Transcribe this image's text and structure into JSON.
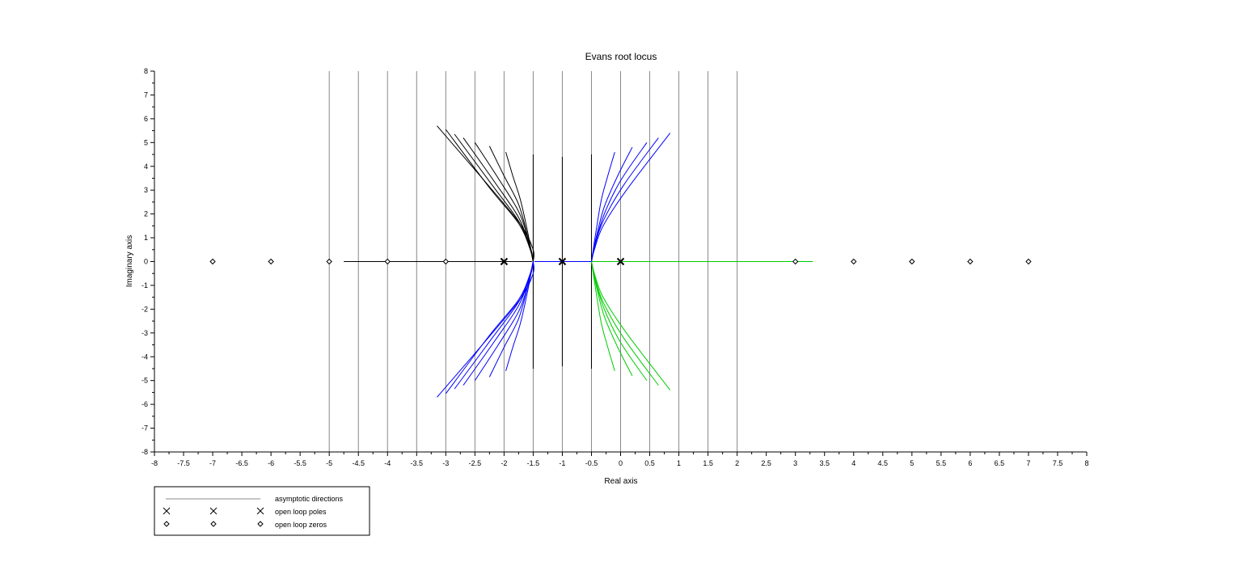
{
  "chart_data": {
    "type": "line",
    "title": "Evans root locus",
    "xlabel": "Real axis",
    "ylabel": "Imaginary axis",
    "xlim": [
      -8,
      8
    ],
    "ylim": [
      -8,
      8
    ],
    "x_ticks": [
      -8,
      -7.5,
      -7,
      -6.5,
      -6,
      -5.5,
      -5,
      -4.5,
      -4,
      -3.5,
      -3,
      -2.5,
      -2,
      -1.5,
      -1,
      -0.5,
      0,
      0.5,
      1,
      1.5,
      2,
      2.5,
      3,
      3.5,
      4,
      4.5,
      5,
      5.5,
      6,
      6.5,
      7,
      7.5,
      8
    ],
    "y_ticks": [
      -8,
      -7,
      -6,
      -5,
      -4,
      -3,
      -2,
      -1,
      0,
      1,
      2,
      3,
      4,
      5,
      6,
      7,
      8
    ],
    "grid": false,
    "legend_position": "bottom-left",
    "legend": [
      {
        "label": "asymptotic directions",
        "marker": "line"
      },
      {
        "label": "open loop poles",
        "marker": "x"
      },
      {
        "label": "open loop zeros",
        "marker": "diamond"
      }
    ],
    "asymptote_x": [
      -5,
      -4.5,
      -4,
      -3.5,
      -3,
      -2.5,
      -2,
      -1.5,
      -1,
      -0.5,
      0,
      0.5,
      1,
      1.5,
      2
    ],
    "poles": [
      [
        -2,
        0
      ],
      [
        -1,
        0
      ],
      [
        0,
        0
      ]
    ],
    "zeros": [
      [
        -7,
        0
      ],
      [
        -6,
        0
      ],
      [
        -5,
        0
      ],
      [
        -4,
        0
      ],
      [
        -3,
        0
      ],
      [
        3,
        0
      ],
      [
        4,
        0
      ],
      [
        5,
        0
      ],
      [
        6,
        0
      ],
      [
        7,
        0
      ]
    ],
    "series": [
      {
        "color": "#000000",
        "points": [
          [
            -4.75,
            0
          ],
          [
            -1.52,
            0
          ]
        ]
      },
      {
        "color": "#0000ff",
        "points": [
          [
            -1.48,
            0
          ],
          [
            -0.5,
            0
          ]
        ]
      },
      {
        "color": "#00cc00",
        "points": [
          [
            -0.5,
            0
          ],
          [
            3.3,
            0
          ]
        ]
      },
      {
        "color": "#000000",
        "points": [
          [
            -1.5,
            4.5
          ],
          [
            -1.5,
            -4.5
          ]
        ]
      },
      {
        "color": "#000000",
        "points": [
          [
            -1,
            4.4
          ],
          [
            -1,
            -4.4
          ]
        ]
      },
      {
        "color": "#000000",
        "points": [
          [
            -0.5,
            4.5
          ],
          [
            -0.5,
            -4.5
          ]
        ]
      },
      {
        "color": "#000000",
        "points": [
          [
            -1.5,
            0
          ],
          [
            -1.5,
            0.5
          ],
          [
            -1.7,
            1.5
          ],
          [
            -2.2,
            3.0
          ],
          [
            -3.15,
            5.7
          ]
        ]
      },
      {
        "color": "#000000",
        "points": [
          [
            -1.5,
            0
          ],
          [
            -1.55,
            0.5
          ],
          [
            -1.75,
            1.6
          ],
          [
            -2.25,
            3.1
          ],
          [
            -3.0,
            5.55
          ]
        ]
      },
      {
        "color": "#000000",
        "points": [
          [
            -1.5,
            0
          ],
          [
            -1.55,
            0.6
          ],
          [
            -1.75,
            1.7
          ],
          [
            -2.2,
            3.2
          ],
          [
            -2.85,
            5.35
          ]
        ]
      },
      {
        "color": "#000000",
        "points": [
          [
            -1.5,
            0
          ],
          [
            -1.57,
            0.7
          ],
          [
            -1.75,
            1.85
          ],
          [
            -2.15,
            3.3
          ],
          [
            -2.7,
            5.2
          ]
        ]
      },
      {
        "color": "#000000",
        "points": [
          [
            -1.5,
            0
          ],
          [
            -1.58,
            0.9
          ],
          [
            -1.75,
            2.1
          ],
          [
            -2.1,
            3.5
          ],
          [
            -2.5,
            5.0
          ]
        ]
      },
      {
        "color": "#000000",
        "points": [
          [
            -1.5,
            0
          ],
          [
            -1.6,
            1.1
          ],
          [
            -1.75,
            2.4
          ],
          [
            -2.0,
            3.6
          ],
          [
            -2.25,
            4.85
          ]
        ]
      },
      {
        "color": "#000000",
        "points": [
          [
            -1.5,
            0
          ],
          [
            -1.6,
            1.3
          ],
          [
            -1.72,
            2.6
          ],
          [
            -1.85,
            3.6
          ],
          [
            -1.97,
            4.6
          ]
        ]
      },
      {
        "color": "#0000ff",
        "points": [
          [
            -1.5,
            0
          ],
          [
            -1.5,
            -0.5
          ],
          [
            -1.7,
            -1.5
          ],
          [
            -2.2,
            -3.0
          ],
          [
            -3.15,
            -5.7
          ]
        ]
      },
      {
        "color": "#0000ff",
        "points": [
          [
            -1.5,
            0
          ],
          [
            -1.55,
            -0.5
          ],
          [
            -1.75,
            -1.6
          ],
          [
            -2.25,
            -3.1
          ],
          [
            -3.0,
            -5.55
          ]
        ]
      },
      {
        "color": "#0000ff",
        "points": [
          [
            -1.5,
            0
          ],
          [
            -1.55,
            -0.6
          ],
          [
            -1.75,
            -1.7
          ],
          [
            -2.2,
            -3.2
          ],
          [
            -2.85,
            -5.35
          ]
        ]
      },
      {
        "color": "#0000ff",
        "points": [
          [
            -1.5,
            0
          ],
          [
            -1.57,
            -0.7
          ],
          [
            -1.75,
            -1.85
          ],
          [
            -2.15,
            -3.3
          ],
          [
            -2.7,
            -5.2
          ]
        ]
      },
      {
        "color": "#0000ff",
        "points": [
          [
            -1.5,
            0
          ],
          [
            -1.58,
            -0.9
          ],
          [
            -1.75,
            -2.1
          ],
          [
            -2.1,
            -3.5
          ],
          [
            -2.5,
            -5.0
          ]
        ]
      },
      {
        "color": "#0000ff",
        "points": [
          [
            -1.5,
            0
          ],
          [
            -1.6,
            -1.1
          ],
          [
            -1.75,
            -2.4
          ],
          [
            -2.0,
            -3.6
          ],
          [
            -2.25,
            -4.85
          ]
        ]
      },
      {
        "color": "#0000ff",
        "points": [
          [
            -1.5,
            0
          ],
          [
            -1.6,
            -1.3
          ],
          [
            -1.72,
            -2.6
          ],
          [
            -1.85,
            -3.6
          ],
          [
            -1.97,
            -4.6
          ]
        ]
      },
      {
        "color": "#0000ff",
        "points": [
          [
            -0.5,
            0
          ],
          [
            -0.45,
            0.5
          ],
          [
            -0.3,
            1.5
          ],
          [
            0.1,
            3.0
          ],
          [
            0.85,
            5.4
          ]
        ]
      },
      {
        "color": "#0000ff",
        "points": [
          [
            -0.5,
            0
          ],
          [
            -0.45,
            0.6
          ],
          [
            -0.3,
            1.7
          ],
          [
            0.05,
            3.2
          ],
          [
            0.65,
            5.2
          ]
        ]
      },
      {
        "color": "#0000ff",
        "points": [
          [
            -0.5,
            0
          ],
          [
            -0.43,
            0.8
          ],
          [
            -0.28,
            2.0
          ],
          [
            0.0,
            3.4
          ],
          [
            0.45,
            5.0
          ]
        ]
      },
      {
        "color": "#0000ff",
        "points": [
          [
            -0.5,
            0
          ],
          [
            -0.42,
            1.0
          ],
          [
            -0.28,
            2.3
          ],
          [
            -0.05,
            3.6
          ],
          [
            0.2,
            4.8
          ]
        ]
      },
      {
        "color": "#0000ff",
        "points": [
          [
            -0.5,
            0
          ],
          [
            -0.42,
            1.3
          ],
          [
            -0.33,
            2.6
          ],
          [
            -0.22,
            3.6
          ],
          [
            -0.1,
            4.6
          ]
        ]
      },
      {
        "color": "#00cc00",
        "points": [
          [
            -0.5,
            0
          ],
          [
            -0.45,
            -0.5
          ],
          [
            -0.3,
            -1.5
          ],
          [
            0.1,
            -3.0
          ],
          [
            0.85,
            -5.4
          ]
        ]
      },
      {
        "color": "#00cc00",
        "points": [
          [
            -0.5,
            0
          ],
          [
            -0.45,
            -0.6
          ],
          [
            -0.3,
            -1.7
          ],
          [
            0.05,
            -3.2
          ],
          [
            0.65,
            -5.2
          ]
        ]
      },
      {
        "color": "#00cc00",
        "points": [
          [
            -0.5,
            0
          ],
          [
            -0.43,
            -0.8
          ],
          [
            -0.28,
            -2.0
          ],
          [
            0.0,
            -3.4
          ],
          [
            0.45,
            -5.0
          ]
        ]
      },
      {
        "color": "#00cc00",
        "points": [
          [
            -0.5,
            0
          ],
          [
            -0.42,
            -1.0
          ],
          [
            -0.28,
            -2.3
          ],
          [
            -0.05,
            -3.6
          ],
          [
            0.2,
            -4.8
          ]
        ]
      },
      {
        "color": "#00cc00",
        "points": [
          [
            -0.5,
            0
          ],
          [
            -0.42,
            -1.3
          ],
          [
            -0.33,
            -2.6
          ],
          [
            -0.22,
            -3.6
          ],
          [
            -0.1,
            -4.6
          ]
        ]
      }
    ]
  }
}
